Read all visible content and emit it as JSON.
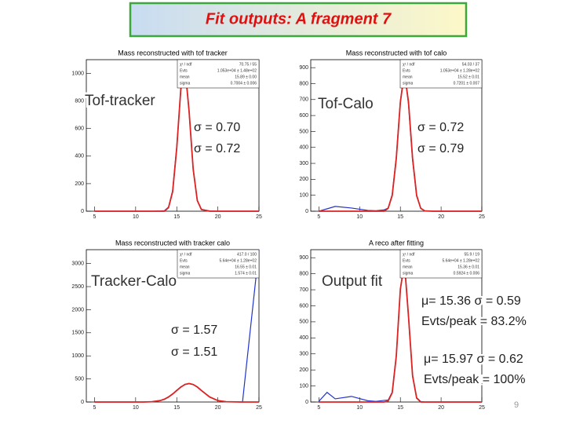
{
  "title": "Fit outputs: A fragment 7",
  "page_number": 9,
  "chart_data": [
    {
      "type": "line",
      "title": "Mass reconstructed with tof tracker",
      "label": "Tof-tracker",
      "annotations": [
        "σ = 0.70",
        "σ = 0.72"
      ],
      "stats": [
        [
          "χ² / ndf",
          "70.75 / 55"
        ],
        [
          "Evts",
          "1.053e+04 ± 1.48e+02"
        ],
        [
          "mean",
          "15.89 ± 0.00"
        ],
        [
          "sigma",
          "0.7004 ± 0.006"
        ]
      ],
      "x": [
        5,
        7,
        9,
        11,
        12,
        13,
        13.5,
        14,
        14.5,
        15,
        15.5,
        16,
        16.5,
        17,
        17.5,
        18,
        19,
        20,
        21,
        23,
        25
      ],
      "series": [
        {
          "color": "#2233cc",
          "values": [
            0,
            0,
            0,
            0,
            0,
            2,
            4,
            30,
            150,
            470,
            880,
            1060,
            720,
            300,
            80,
            14,
            2,
            0,
            0,
            0,
            0
          ]
        },
        {
          "color": "#dd2222",
          "values": [
            0,
            0,
            0,
            0,
            0,
            0,
            0,
            26,
            142,
            459,
            892,
            1045,
            727,
            305,
            77,
            12,
            0,
            0,
            0,
            0,
            0
          ]
        }
      ],
      "xlim": [
        4,
        25
      ],
      "xticks": [
        5,
        10,
        15,
        20,
        25
      ],
      "ylim": [
        0,
        1100
      ],
      "yticks": [
        0,
        200,
        400,
        600,
        800,
        1000
      ]
    },
    {
      "type": "line",
      "title": "Mass reconstructed with tof calo",
      "label": "Tof-Calo",
      "annotations": [
        "σ = 0.72",
        "σ = 0.79"
      ],
      "stats": [
        [
          "χ² / ndf",
          "54.03 / 37"
        ],
        [
          "Evts",
          "1.053e+04 ± 1.28e+02"
        ],
        [
          "mean",
          "15.52 ± 0.01"
        ],
        [
          "sigma",
          "0.7201 ± 0.007"
        ]
      ],
      "x": [
        5,
        7,
        9,
        11,
        12,
        13,
        13.5,
        14,
        14.5,
        15,
        15.5,
        16,
        16.5,
        17,
        17.5,
        18,
        19,
        20,
        21,
        23,
        25
      ],
      "series": [
        {
          "color": "#2233cc",
          "values": [
            0,
            30,
            20,
            5,
            3,
            8,
            20,
            105,
            340,
            690,
            880,
            670,
            320,
            95,
            20,
            3,
            0,
            0,
            0,
            0,
            0
          ]
        },
        {
          "color": "#dd2222",
          "values": [
            0,
            0,
            0,
            0,
            0,
            0,
            18,
            99,
            331,
            684,
            870,
            684,
            331,
            99,
            18,
            2,
            0,
            0,
            0,
            0,
            0
          ]
        }
      ],
      "xlim": [
        4,
        25
      ],
      "xticks": [
        5,
        10,
        15,
        20,
        25
      ],
      "ylim": [
        0,
        950
      ],
      "yticks": [
        0,
        100,
        200,
        300,
        400,
        500,
        600,
        700,
        800,
        900
      ]
    },
    {
      "type": "line",
      "title": "Mass reconstructed with tracker calo",
      "label": "Tracker-Calo",
      "annotations": [
        "σ = 1.57",
        "σ = 1.51"
      ],
      "stats": [
        [
          "χ² / ndf",
          "417.0 / 100"
        ],
        [
          "Evts",
          "5.64e+04 ± 1.28e+02"
        ],
        [
          "mean",
          "16.55 ± 0.01"
        ],
        [
          "sigma",
          "1.574 ± 0.01"
        ]
      ],
      "x": [
        5,
        7,
        9,
        11,
        12,
        13,
        13.5,
        14,
        14.5,
        15,
        15.5,
        16,
        16.5,
        17,
        17.5,
        18,
        19,
        20,
        21,
        23,
        25
      ],
      "series": [
        {
          "color": "#2233cc",
          "values": [
            0,
            0,
            0,
            2,
            8,
            35,
            58,
            112,
            170,
            255,
            320,
            385,
            398,
            376,
            330,
            245,
            112,
            28,
            5,
            0,
            3300
          ]
        },
        {
          "color": "#dd2222",
          "values": [
            0,
            0,
            0,
            0,
            6,
            31,
            61,
            109,
            174,
            250,
            325,
            380,
            400,
            380,
            325,
            250,
            109,
            31,
            6,
            0,
            0
          ]
        }
      ],
      "xlim": [
        4,
        25
      ],
      "xticks": [
        5,
        10,
        15,
        20,
        25
      ],
      "ylim": [
        0,
        3300
      ],
      "yticks": [
        0,
        500,
        1000,
        1500,
        2000,
        2500,
        3000
      ]
    },
    {
      "type": "line",
      "title": "A reco after fitting",
      "label": "Output fit",
      "annotations": [
        "μ= 15.36  σ = 0.59",
        "Evts/peak = 83.2%",
        "μ= 15.97  σ = 0.62",
        "Evts/peak = 100%"
      ],
      "stats": [
        [
          "χ² / ndf",
          "55.9 / 19"
        ],
        [
          "Evts",
          "5.64e+04 ± 1.28e+02"
        ],
        [
          "mean",
          "15.36 ± 0.01"
        ],
        [
          "sigma",
          "0.5924 ± 0.006"
        ]
      ],
      "x": [
        5,
        6,
        7,
        9,
        11,
        12,
        13,
        13.5,
        14,
        14.5,
        15,
        15.5,
        16,
        16.5,
        17,
        17.5,
        18,
        20,
        21,
        23,
        25
      ],
      "series": [
        {
          "color": "#2233cc",
          "values": [
            5,
            60,
            20,
            35,
            8,
            4,
            10,
            12,
            62,
            290,
            700,
            875,
            530,
            160,
            28,
            3,
            0,
            0,
            0,
            0,
            0
          ]
        },
        {
          "color": "#dd2222",
          "values": [
            0,
            0,
            0,
            0,
            0,
            0,
            0,
            6,
            58,
            286,
            704,
            868,
            534,
            164,
            25,
            0,
            0,
            0,
            0,
            0,
            0
          ]
        }
      ],
      "xlim": [
        4,
        25
      ],
      "xticks": [
        5,
        10,
        15,
        20,
        25
      ],
      "ylim": [
        0,
        950
      ],
      "yticks": [
        0,
        100,
        200,
        300,
        400,
        500,
        600,
        700,
        800,
        900
      ]
    }
  ]
}
